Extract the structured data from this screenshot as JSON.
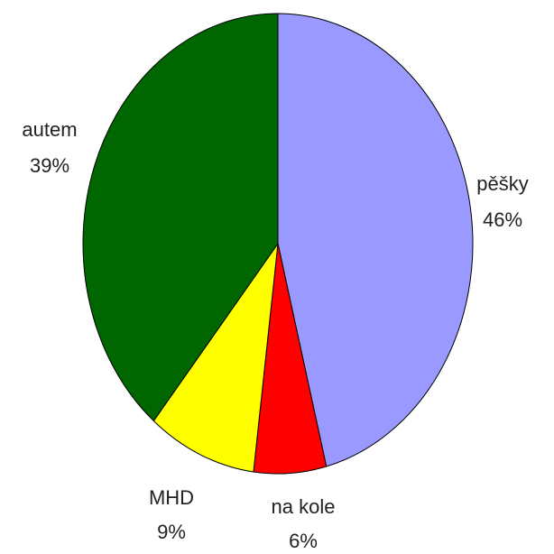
{
  "chart_data": {
    "type": "pie",
    "categories": [
      "pěšky",
      "na kole",
      "MHD",
      "autem"
    ],
    "values": [
      46,
      6,
      9,
      39
    ],
    "value_labels": [
      "46%",
      "6%",
      "9%",
      "39%"
    ],
    "colors": [
      "#9999ff",
      "#ff0000",
      "#ffff00",
      "#006600"
    ]
  }
}
